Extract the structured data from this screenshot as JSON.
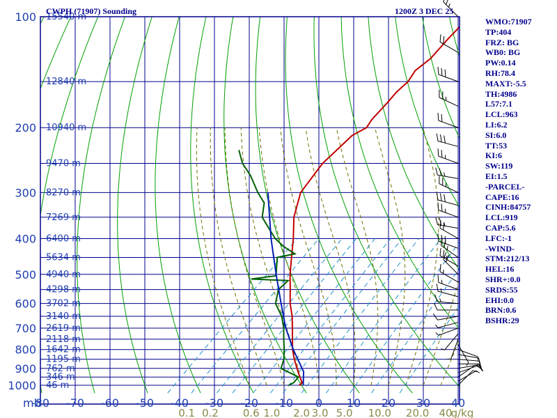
{
  "header": {
    "station": "CWPH (71907) Sounding",
    "time": "1200Z  3 DEC 25"
  },
  "colors": {
    "frame": "#00008b",
    "isobar": "#00008b",
    "isotherm": "#00008b",
    "dry_adiabat": "#00a000",
    "moist_adiabat": "#707000",
    "mixing_ratio": "#2090c8",
    "temperature": "#c00000",
    "dewpoint": "#006000",
    "parcel": "#0020b0",
    "pressure_label": "#1f3fb0",
    "temp_label": "#1f3fb0",
    "mixing_label": "#8b8b4a",
    "wind": "#000000"
  },
  "side_panel": [
    "WMO:71907",
    "TP:404",
    "FRZ: BG",
    "WB0: BG",
    "PW:0.14",
    "RH:78.4",
    "MAXT:-5.5",
    "TH:4986",
    "L57:7.1",
    "LCL:963",
    "LI:6.2",
    "SI:6.0",
    "TT:53",
    "KI:6",
    "SW:119",
    "EI:1.5",
    "-PARCEL-",
    "CAPE:16",
    "CINH:84757",
    "LCL:919",
    "CAP:5.6",
    "LFC:-1",
    "-WIND-",
    "STM:212/13",
    "HEL:16",
    "SHR+:0.0",
    "SRDS:55",
    "EHI:0.0",
    "BRN:0.6",
    "BSHR:29"
  ],
  "chart_data": {
    "type": "line",
    "title": "CWPH (71907) Sounding",
    "diagram": "skew-T log-P",
    "pressure_axis_label": "mb",
    "pressure_levels": [
      100,
      200,
      300,
      400,
      500,
      600,
      700,
      800,
      900,
      1000
    ],
    "pressure_tick_labels": [
      "100",
      "200",
      "300",
      "400",
      "500",
      "600",
      "700",
      "800",
      "900",
      "1000"
    ],
    "temperature_ticks": [
      -80,
      -70,
      -60,
      -50,
      -40,
      -30,
      -20,
      -10,
      0,
      10,
      20,
      30,
      40
    ],
    "temperature_tick_labels": [
      "-80",
      "-70",
      "-60",
      "-50",
      "-40",
      "-30",
      "-20",
      "-10",
      "0",
      "10",
      "20",
      "30",
      "40"
    ],
    "height_labels": [
      {
        "p": 100,
        "text": "15540 m"
      },
      {
        "p": 150,
        "text": "12840 m"
      },
      {
        "p": 200,
        "text": "10940 m"
      },
      {
        "p": 250,
        "text": "9470 m"
      },
      {
        "p": 300,
        "text": "8270 m"
      },
      {
        "p": 350,
        "text": "7269 m"
      },
      {
        "p": 400,
        "text": "6400 m"
      },
      {
        "p": 450,
        "text": "5634 m"
      },
      {
        "p": 500,
        "text": "4940 m"
      },
      {
        "p": 550,
        "text": "4298 m"
      },
      {
        "p": 600,
        "text": "3702 m"
      },
      {
        "p": 650,
        "text": "3140 m"
      },
      {
        "p": 700,
        "text": "2619 m"
      },
      {
        "p": 750,
        "text": "2118 m"
      },
      {
        "p": 800,
        "text": "1642 m"
      },
      {
        "p": 850,
        "text": "1195 m"
      },
      {
        "p": 900,
        "text": "762 m"
      },
      {
        "p": 950,
        "text": "346 m"
      },
      {
        "p": 1000,
        "text": "46 m"
      }
    ],
    "mixing_ratio_labels": [
      {
        "w": 0.1,
        "text": "0.1"
      },
      {
        "w": 0.2,
        "text": "0.2"
      },
      {
        "w": 0.6,
        "text": "0.6"
      },
      {
        "w": 1.0,
        "text": "1.0"
      },
      {
        "w": 2.0,
        "text": "2.0"
      },
      {
        "w": 3.0,
        "text": "3.0"
      },
      {
        "w": 5.0,
        "text": "5.0"
      },
      {
        "w": 10.0,
        "text": "10.0"
      },
      {
        "w": 20.0,
        "text": "20.0"
      },
      {
        "w": 40.0,
        "text": "40"
      }
    ],
    "mixing_ratio_unit": "g/kg",
    "mixing_ratio_lines": [
      0.1,
      0.2,
      0.4,
      0.6,
      1.0,
      1.5,
      2.0,
      3.0,
      5.0,
      8.0,
      12.0,
      20.0
    ],
    "moist_adiabat_lines": [
      -20,
      -15,
      -10,
      -5,
      0,
      5,
      10,
      15,
      20,
      25,
      30,
      35
    ],
    "dry_adiabat_lines": [
      -110,
      -95,
      -80,
      -65,
      -50,
      -35,
      -20,
      -5,
      10,
      25,
      40,
      55,
      70,
      85,
      100,
      115,
      130
    ],
    "series": [
      {
        "key": "temperature",
        "points": [
          [
            1000,
            -5.7
          ],
          [
            985,
            -5.5
          ],
          [
            950,
            -7.9
          ],
          [
            900,
            -11.3
          ],
          [
            850,
            -14.8
          ],
          [
            800,
            -18.2
          ],
          [
            750,
            -21.3
          ],
          [
            700,
            -24.6
          ],
          [
            650,
            -28.2
          ],
          [
            600,
            -32.6
          ],
          [
            550,
            -36.7
          ],
          [
            500,
            -41.3
          ],
          [
            450,
            -45.9
          ],
          [
            400,
            -51.0
          ],
          [
            350,
            -57.2
          ],
          [
            300,
            -62.6
          ],
          [
            250,
            -65.0
          ],
          [
            210,
            -64.8
          ],
          [
            200,
            -63.0
          ],
          [
            190,
            -63.9
          ],
          [
            170,
            -64.5
          ],
          [
            160,
            -65.0
          ],
          [
            150,
            -64.8
          ],
          [
            140,
            -66.0
          ],
          [
            130,
            -65.2
          ],
          [
            115,
            -66.0
          ],
          [
            100,
            -66.5
          ]
        ]
      },
      {
        "key": "dewpoint",
        "points": [
          [
            1000,
            -8.7
          ],
          [
            985,
            -8.0
          ],
          [
            950,
            -8.3
          ],
          [
            900,
            -15.9
          ],
          [
            850,
            -17.8
          ],
          [
            800,
            -20.6
          ],
          [
            750,
            -23.8
          ],
          [
            700,
            -27.1
          ],
          [
            650,
            -31.2
          ],
          [
            600,
            -36.8
          ],
          [
            550,
            -40.1
          ],
          [
            520,
            -40.0
          ],
          [
            515,
            -51.0
          ],
          [
            505,
            -45.0
          ],
          [
            500,
            -45.3
          ],
          [
            450,
            -50.0
          ],
          [
            440,
            -46.0
          ],
          [
            420,
            -51.5
          ],
          [
            400,
            -56.2
          ],
          [
            380,
            -60.1
          ],
          [
            350,
            -66.3
          ],
          [
            320,
            -70.0
          ],
          [
            300,
            -74.9
          ],
          [
            270,
            -82.0
          ],
          [
            250,
            -88.0
          ],
          [
            230,
            -93.0
          ]
        ]
      },
      {
        "key": "parcel",
        "points": [
          [
            1000,
            -4.5
          ],
          [
            919,
            -8.4
          ],
          [
            800,
            -18.0
          ],
          [
            700,
            -26.5
          ],
          [
            600,
            -35.2
          ],
          [
            500,
            -45.3
          ],
          [
            400,
            -57.4
          ],
          [
            300,
            -72.0
          ]
        ]
      }
    ],
    "wind_barbs": [
      {
        "p": 1000,
        "dir": 45,
        "spd": 5
      },
      {
        "p": 975,
        "dir": 60,
        "spd": 5
      },
      {
        "p": 950,
        "dir": 55,
        "spd": 10
      },
      {
        "p": 925,
        "dir": 70,
        "spd": 10
      },
      {
        "p": 900,
        "dir": 80,
        "spd": 10
      },
      {
        "p": 875,
        "dir": 90,
        "spd": 10
      },
      {
        "p": 850,
        "dir": 95,
        "spd": 10
      },
      {
        "p": 825,
        "dir": 100,
        "spd": 10
      },
      {
        "p": 800,
        "dir": 110,
        "spd": 5
      },
      {
        "p": 775,
        "dir": 150,
        "spd": 5
      },
      {
        "p": 750,
        "dir": 200,
        "spd": 5
      },
      {
        "p": 725,
        "dir": 220,
        "spd": 5
      },
      {
        "p": 700,
        "dir": 250,
        "spd": 5
      },
      {
        "p": 675,
        "dir": 255,
        "spd": 5
      },
      {
        "p": 650,
        "dir": 260,
        "spd": 10
      },
      {
        "p": 625,
        "dir": 270,
        "spd": 10
      },
      {
        "p": 600,
        "dir": 275,
        "spd": 15
      },
      {
        "p": 575,
        "dir": 285,
        "spd": 15
      },
      {
        "p": 550,
        "dir": 290,
        "spd": 15
      },
      {
        "p": 525,
        "dir": 300,
        "spd": 15
      },
      {
        "p": 500,
        "dir": 315,
        "spd": 20
      },
      {
        "p": 475,
        "dir": 300,
        "spd": 25
      },
      {
        "p": 450,
        "dir": 305,
        "spd": 25
      },
      {
        "p": 425,
        "dir": 290,
        "spd": 30
      },
      {
        "p": 400,
        "dir": 300,
        "spd": 20
      },
      {
        "p": 375,
        "dir": 280,
        "spd": 25
      },
      {
        "p": 350,
        "dir": 290,
        "spd": 25
      },
      {
        "p": 325,
        "dir": 285,
        "spd": 30
      },
      {
        "p": 300,
        "dir": 295,
        "spd": 25
      },
      {
        "p": 275,
        "dir": 280,
        "spd": 25
      },
      {
        "p": 250,
        "dir": 290,
        "spd": 25
      },
      {
        "p": 225,
        "dir": 285,
        "spd": 30
      },
      {
        "p": 200,
        "dir": 290,
        "spd": 20
      },
      {
        "p": 175,
        "dir": 295,
        "spd": 25
      },
      {
        "p": 150,
        "dir": 290,
        "spd": 30
      },
      {
        "p": 125,
        "dir": 300,
        "spd": 20
      },
      {
        "p": 100,
        "dir": 315,
        "spd": 25
      }
    ],
    "xlim": [
      -80,
      40
    ],
    "ylim": [
      1050,
      100
    ],
    "grid": true
  }
}
